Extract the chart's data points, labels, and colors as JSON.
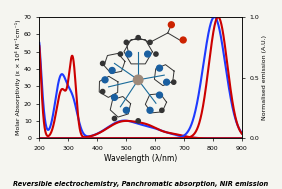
{
  "title": "Reversible electrochemistry, Panchromatic absorption, NIR emission",
  "xlabel": "Wavelength (λ/nm)",
  "ylabel_left": "Molar Absorptivity (ε × 10⁴ M⁻¹cm⁻¹)",
  "ylabel_right": "Normalised emission (A.U.)",
  "xlim": [
    200,
    900
  ],
  "ylim_left": [
    0,
    70
  ],
  "ylim_right": [
    0,
    1.0
  ],
  "yticks_left": [
    0,
    10,
    20,
    30,
    40,
    50,
    60,
    70
  ],
  "yticks_right": [
    0.0,
    0.5,
    1.0
  ],
  "background_color": "#f5f5f0",
  "blue_color": "#1e3aff",
  "red_color": "#cc0000",
  "line_width": 1.5
}
